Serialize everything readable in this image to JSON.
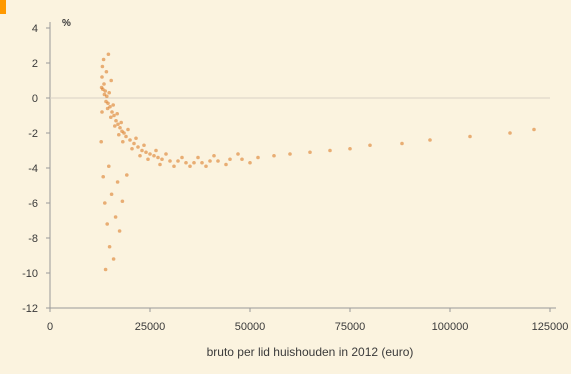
{
  "chart_data": {
    "type": "scatter",
    "title": "",
    "xlabel": "bruto per lid huishouden in 2012 (euro)",
    "ylabel": "%",
    "xlim": [
      0,
      125000
    ],
    "ylim": [
      -12,
      4
    ],
    "x_ticks": [
      "0",
      "25000",
      "50000",
      "75000",
      "100000",
      "125000"
    ],
    "y_ticks": [
      "4",
      "2",
      "0",
      "-2",
      "-4",
      "-6",
      "-8",
      "-10",
      "-12"
    ],
    "grid": false,
    "reference_line_y": 0,
    "legend": "none",
    "colors": {
      "background": "#fbf3df",
      "points": "#d9731a",
      "axis": "#9a9a9a",
      "reference_line": "#d8d2c6",
      "corner_accent": "#ff9900"
    },
    "series": [
      {
        "values": [
          [
            13000,
            1.2
          ],
          [
            13500,
            0.8
          ],
          [
            13800,
            0.4
          ],
          [
            14200,
            0.1
          ],
          [
            14500,
            -0.3
          ],
          [
            15000,
            -0.5
          ],
          [
            15500,
            -0.8
          ],
          [
            16000,
            -1.0
          ],
          [
            16500,
            -1.3
          ],
          [
            17000,
            -1.5
          ],
          [
            17500,
            -1.7
          ],
          [
            18000,
            -1.9
          ],
          [
            18500,
            -2.0
          ],
          [
            19000,
            -2.2
          ],
          [
            20000,
            -2.4
          ],
          [
            21000,
            -2.6
          ],
          [
            22000,
            -2.8
          ],
          [
            23000,
            -3.0
          ],
          [
            24000,
            -3.1
          ],
          [
            25000,
            -3.2
          ],
          [
            26000,
            -3.3
          ],
          [
            27000,
            -3.4
          ],
          [
            28000,
            -3.5
          ],
          [
            30000,
            -3.6
          ],
          [
            32000,
            -3.6
          ],
          [
            34000,
            -3.7
          ],
          [
            36000,
            -3.7
          ],
          [
            38000,
            -3.7
          ],
          [
            40000,
            -3.6
          ],
          [
            42000,
            -3.6
          ],
          [
            45000,
            -3.5
          ],
          [
            48000,
            -3.5
          ],
          [
            52000,
            -3.4
          ],
          [
            56000,
            -3.3
          ],
          [
            60000,
            -3.2
          ],
          [
            65000,
            -3.1
          ],
          [
            70000,
            -3.0
          ],
          [
            75000,
            -2.9
          ],
          [
            80000,
            -2.7
          ],
          [
            88000,
            -2.6
          ],
          [
            95000,
            -2.4
          ],
          [
            105000,
            -2.2
          ],
          [
            115000,
            -2.0
          ],
          [
            121000,
            -1.8
          ],
          [
            13200,
            0.5
          ],
          [
            13600,
            0.2
          ],
          [
            14000,
            -0.2
          ],
          [
            14400,
            -0.6
          ],
          [
            14800,
            0.3
          ],
          [
            15200,
            -1.1
          ],
          [
            15800,
            -0.4
          ],
          [
            16200,
            -1.6
          ],
          [
            16800,
            -0.9
          ],
          [
            17200,
            -2.1
          ],
          [
            17800,
            -1.4
          ],
          [
            18200,
            -2.5
          ],
          [
            19500,
            -1.8
          ],
          [
            20500,
            -2.9
          ],
          [
            21500,
            -2.3
          ],
          [
            22500,
            -3.3
          ],
          [
            23500,
            -2.7
          ],
          [
            24500,
            -3.5
          ],
          [
            26500,
            -3.0
          ],
          [
            27500,
            -3.8
          ],
          [
            29000,
            -3.2
          ],
          [
            31000,
            -3.9
          ],
          [
            33000,
            -3.4
          ],
          [
            35000,
            -3.9
          ],
          [
            37000,
            -3.4
          ],
          [
            39000,
            -3.9
          ],
          [
            41000,
            -3.3
          ],
          [
            44000,
            -3.8
          ],
          [
            47000,
            -3.2
          ],
          [
            50000,
            -3.7
          ],
          [
            13100,
            1.8
          ],
          [
            13400,
            2.2
          ],
          [
            14100,
            1.5
          ],
          [
            14600,
            2.5
          ],
          [
            15300,
            1.0
          ],
          [
            13300,
            -4.5
          ],
          [
            13700,
            -6.0
          ],
          [
            14300,
            -7.2
          ],
          [
            14900,
            -8.5
          ],
          [
            15400,
            -5.5
          ],
          [
            15900,
            -9.2
          ],
          [
            16400,
            -6.8
          ],
          [
            16900,
            -4.8
          ],
          [
            17400,
            -7.6
          ],
          [
            18100,
            -5.9
          ],
          [
            13900,
            -9.8
          ],
          [
            14700,
            -3.9
          ],
          [
            19200,
            -4.4
          ],
          [
            12800,
            -2.5
          ],
          [
            13000,
            -0.8
          ],
          [
            12900,
            0.6
          ]
        ]
      }
    ]
  }
}
